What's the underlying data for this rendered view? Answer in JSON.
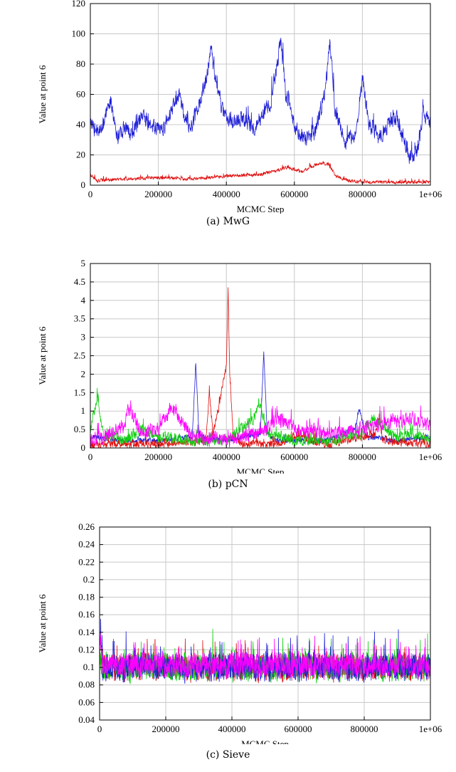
{
  "chart_data": [
    {
      "type": "line",
      "caption": "(a) MwG",
      "xlabel": "MCMC Step",
      "ylabel": "Value at point 6",
      "xlim": [
        0,
        1000000
      ],
      "ylim": [
        0,
        120
      ],
      "xticks": [
        0,
        200000,
        400000,
        600000,
        800000,
        1000000
      ],
      "xtick_labels": [
        "0",
        "200000",
        "400000",
        "600000",
        "800000",
        "1e+06"
      ],
      "yticks": [
        0,
        20,
        40,
        60,
        80,
        100,
        120
      ],
      "ytick_labels": [
        "0",
        "20",
        "40",
        "60",
        "80",
        "100",
        "120"
      ],
      "grid": true,
      "series": [
        {
          "color": "#1f1fd6",
          "noise": 7,
          "x": [
            0,
            20000,
            40000,
            60000,
            80000,
            100000,
            120000,
            150000,
            180000,
            210000,
            240000,
            260000,
            280000,
            300000,
            320000,
            340000,
            355000,
            370000,
            390000,
            420000,
            450000,
            480000,
            510000,
            530000,
            550000,
            560000,
            575000,
            600000,
            630000,
            660000,
            690000,
            705000,
            720000,
            750000,
            780000,
            800000,
            820000,
            850000,
            880000,
            900000,
            920000,
            940000,
            960000,
            980000,
            1000000
          ],
          "y": [
            40,
            35,
            42,
            55,
            30,
            38,
            33,
            45,
            40,
            35,
            50,
            60,
            42,
            40,
            55,
            70,
            90,
            65,
            48,
            40,
            45,
            38,
            48,
            55,
            80,
            95,
            60,
            40,
            30,
            35,
            60,
            95,
            50,
            28,
            35,
            70,
            40,
            32,
            40,
            45,
            30,
            18,
            22,
            48,
            40
          ]
        },
        {
          "color": "#e01010",
          "noise": 1.5,
          "x": [
            0,
            20000,
            100000,
            200000,
            300000,
            400000,
            500000,
            550000,
            580000,
            620000,
            650000,
            680000,
            700000,
            720000,
            760000,
            800000,
            900000,
            1000000
          ],
          "y": [
            7,
            3,
            4,
            5,
            4,
            6,
            7,
            10,
            12,
            9,
            12,
            15,
            14,
            6,
            3,
            2,
            2,
            2
          ]
        }
      ]
    },
    {
      "type": "line",
      "caption": "(b) pCN",
      "xlabel": "MCMC Step",
      "ylabel": "Value at point 6",
      "xlim": [
        0,
        1000000
      ],
      "ylim": [
        0,
        5
      ],
      "xticks": [
        0,
        200000,
        400000,
        600000,
        800000,
        1000000
      ],
      "xtick_labels": [
        "0",
        "200000",
        "400000",
        "600000",
        "800000",
        "1e+06"
      ],
      "yticks": [
        0,
        0.5,
        1,
        1.5,
        2,
        2.5,
        3,
        3.5,
        4,
        4.5,
        5
      ],
      "ytick_labels": [
        "0",
        "0.5",
        "1",
        "1.5",
        "2",
        "2.5",
        "3",
        "3.5",
        "4",
        "4.5",
        "5"
      ],
      "grid": true,
      "series": [
        {
          "color": "#1f1fd6",
          "noise": 0.1,
          "x": [
            0,
            100000,
            200000,
            300000,
            310000,
            320000,
            400000,
            500000,
            510000,
            520000,
            540000,
            600000,
            700000,
            780000,
            790000,
            810000,
            900000,
            1000000
          ],
          "y": [
            0.3,
            0.2,
            0.2,
            0.3,
            2.3,
            0.3,
            0.2,
            0.4,
            2.6,
            0.4,
            0.2,
            0.2,
            0.2,
            0.5,
            1.1,
            0.3,
            0.2,
            0.3
          ]
        },
        {
          "color": "#e01010",
          "noise": 0.15,
          "x": [
            0,
            200000,
            340000,
            350000,
            360000,
            370000,
            380000,
            390000,
            400000,
            405000,
            410000,
            420000,
            450000,
            550000,
            600000,
            700000,
            840000,
            850000,
            860000,
            1000000
          ],
          "y": [
            0.1,
            0.1,
            0.2,
            1.5,
            0.4,
            0.8,
            1.2,
            1.8,
            2.2,
            4.3,
            2.0,
            0.3,
            0.1,
            0.1,
            0.3,
            0.1,
            0.4,
            0.9,
            0.2,
            0.1
          ]
        },
        {
          "color": "#10d010",
          "noise": 0.2,
          "x": [
            0,
            20000,
            40000,
            100000,
            150000,
            200000,
            300000,
            400000,
            480000,
            500000,
            520000,
            600000,
            700000,
            800000,
            830000,
            900000,
            950000,
            1000000
          ],
          "y": [
            0.5,
            1.4,
            0.3,
            0.2,
            0.5,
            0.3,
            0.2,
            0.2,
            0.8,
            1.2,
            0.4,
            0.2,
            0.2,
            0.4,
            0.8,
            0.3,
            0.4,
            0.2
          ]
        },
        {
          "color": "#ff00ff",
          "noise": 0.25,
          "x": [
            0,
            50000,
            100000,
            110000,
            150000,
            200000,
            240000,
            260000,
            300000,
            400000,
            500000,
            550000,
            600000,
            700000,
            800000,
            900000,
            950000,
            1000000
          ],
          "y": [
            0.2,
            0.3,
            0.6,
            1.1,
            0.4,
            0.5,
            1.1,
            0.8,
            0.3,
            0.2,
            0.4,
            0.8,
            0.5,
            0.4,
            0.5,
            0.7,
            0.8,
            0.6
          ]
        }
      ]
    },
    {
      "type": "line",
      "caption": "(c) Sieve",
      "xlabel": "MCMC Step",
      "ylabel": "Value at point 6",
      "xlim": [
        0,
        1000000
      ],
      "ylim": [
        0.04,
        0.26
      ],
      "xticks": [
        0,
        200000,
        400000,
        600000,
        800000,
        1000000
      ],
      "xtick_labels": [
        "0",
        "200000",
        "400000",
        "600000",
        "800000",
        "1e+06"
      ],
      "yticks": [
        0.04,
        0.06,
        0.08,
        0.1,
        0.12,
        0.14,
        0.16,
        0.18,
        0.2,
        0.22,
        0.24,
        0.26
      ],
      "ytick_labels": [
        "0.04",
        "0.06",
        "0.08",
        "0.1",
        "0.12",
        "0.14",
        "0.16",
        "0.18",
        "0.2",
        "0.22",
        "0.24",
        "0.26"
      ],
      "grid": true,
      "series": [
        {
          "color": "#e01010",
          "noise": 0.02,
          "x": [
            0,
            10000,
            1000000
          ],
          "y": [
            0.12,
            0.1,
            0.1
          ]
        },
        {
          "color": "#10d010",
          "noise": 0.02,
          "x": [
            0,
            10000,
            1000000
          ],
          "y": [
            0.11,
            0.1,
            0.1
          ]
        },
        {
          "color": "#1f1fd6",
          "noise": 0.02,
          "x": [
            0,
            10000,
            1000000
          ],
          "y": [
            0.13,
            0.1,
            0.1
          ]
        },
        {
          "color": "#ff00ff",
          "noise": 0.018,
          "x": [
            0,
            10000,
            1000000
          ],
          "y": [
            0.14,
            0.102,
            0.102
          ]
        }
      ]
    }
  ]
}
